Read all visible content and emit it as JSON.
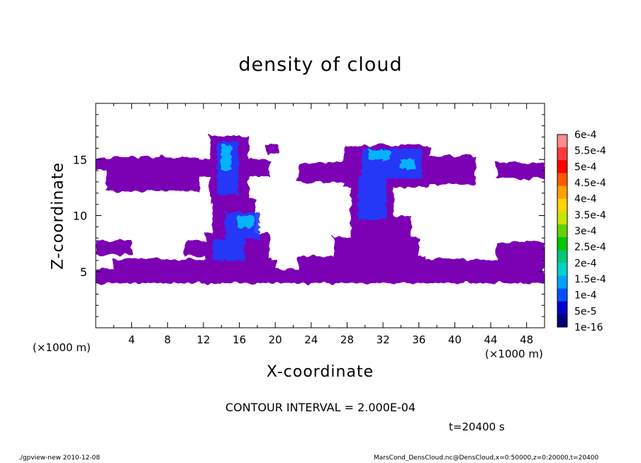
{
  "chart_data": {
    "type": "heatmap",
    "title": "density of cloud",
    "xlabel": "X-coordinate",
    "ylabel": "Z-coordinate",
    "x_unit_left": "(×1000 m)",
    "x_unit_right": "(×1000 m)",
    "xlim": [
      0,
      50
    ],
    "ylim": [
      0,
      20
    ],
    "xticks": [
      4,
      8,
      12,
      16,
      20,
      24,
      28,
      32,
      36,
      40,
      44,
      48
    ],
    "yticks": [
      5,
      10,
      15
    ],
    "colorbar": {
      "labels": [
        "6e-4",
        "5.5e-4",
        "5e-4",
        "4.5e-4",
        "4e-4",
        "3.5e-4",
        "3e-4",
        "2.5e-4",
        "2e-4",
        "1.5e-4",
        "1e-4",
        "5e-5",
        "1e-16"
      ],
      "colors": [
        "#ff8c8c",
        "#ff3c3c",
        "#ff0000",
        "#ff5a00",
        "#ffa000",
        "#ffd200",
        "#c8e600",
        "#64d200",
        "#00c800",
        "#00c878",
        "#00d2c8",
        "#00a0ff",
        "#0050ff",
        "#0000c8",
        "#00007a"
      ]
    },
    "cloud_regions": [
      {
        "x": [
          0,
          50
        ],
        "z": [
          4,
          5.5
        ],
        "density": "1e-16"
      },
      {
        "x": [
          0,
          50
        ],
        "z": [
          14,
          15
        ],
        "density": "1e-16"
      },
      {
        "x": [
          13,
          15.5
        ],
        "z": [
          12,
          16.5
        ],
        "density": "1e-4"
      },
      {
        "x": [
          15,
          18.5
        ],
        "z": [
          7,
          10
        ],
        "density": "1e-4"
      },
      {
        "x": [
          29,
          36
        ],
        "z": [
          13,
          16
        ],
        "density": "1e-4"
      }
    ],
    "background_color": "#7b00b4"
  },
  "annotations": {
    "contour_interval": "CONTOUR INTERVAL = 2.000E-04",
    "time": "t=20400 s",
    "footer_left": "./gpview-new  2010-12-08",
    "footer_right": "MarsCond_DensCloud.nc@DensCloud,x=0:50000,z=0:20000,t=20400"
  }
}
